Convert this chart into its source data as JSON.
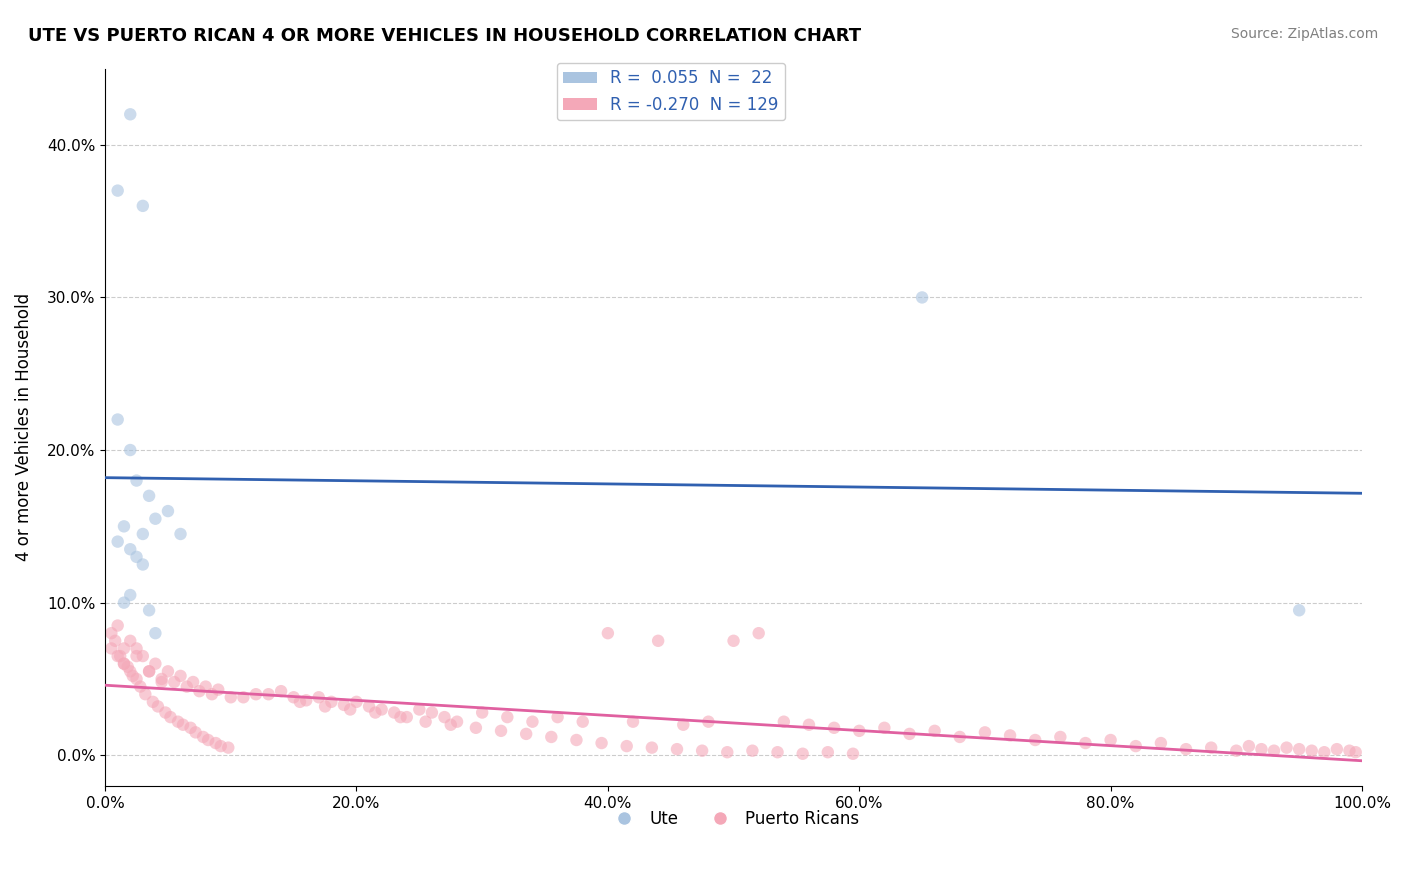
{
  "title": "UTE VS PUERTO RICAN 4 OR MORE VEHICLES IN HOUSEHOLD CORRELATION CHART",
  "source": "Source: ZipAtlas.com",
  "xlabel": "",
  "ylabel": "4 or more Vehicles in Household",
  "xlim": [
    0,
    1.0
  ],
  "ylim": [
    -0.02,
    0.45
  ],
  "xticks": [
    0.0,
    0.2,
    0.4,
    0.6,
    0.8,
    1.0
  ],
  "xticklabels": [
    "0.0%",
    "20.0%",
    "40.0%",
    "60.0%",
    "80.0%",
    "100.0%"
  ],
  "yticks": [
    0.0,
    0.1,
    0.2,
    0.3,
    0.4
  ],
  "yticklabels": [
    "0.0%",
    "10.0%",
    "20.0%",
    "30.0%",
    "40.0%"
  ],
  "blue_R": 0.055,
  "blue_N": 22,
  "pink_R": -0.27,
  "pink_N": 129,
  "blue_color": "#aac4e0",
  "pink_color": "#f4a8b8",
  "blue_line_color": "#3060b0",
  "pink_line_color": "#e060a0",
  "legend_blue_label": "R =  0.055  N =  22",
  "legend_pink_label": "R = -0.270  N = 129",
  "background_color": "#ffffff",
  "grid_color": "#cccccc",
  "ute_x": [
    0.02,
    0.01,
    0.03,
    0.04,
    0.01,
    0.02,
    0.025,
    0.035,
    0.015,
    0.04,
    0.05,
    0.03,
    0.06,
    0.01,
    0.02,
    0.025,
    0.03,
    0.65,
    0.02,
    0.015,
    0.035,
    0.95
  ],
  "ute_y": [
    0.42,
    0.37,
    0.36,
    0.08,
    0.22,
    0.2,
    0.18,
    0.17,
    0.15,
    0.155,
    0.16,
    0.145,
    0.145,
    0.14,
    0.135,
    0.13,
    0.125,
    0.3,
    0.105,
    0.1,
    0.095,
    0.095
  ],
  "pr_x": [
    0.01,
    0.015,
    0.02,
    0.025,
    0.005,
    0.01,
    0.015,
    0.02,
    0.025,
    0.03,
    0.035,
    0.04,
    0.045,
    0.05,
    0.055,
    0.06,
    0.065,
    0.07,
    0.075,
    0.08,
    0.085,
    0.09,
    0.1,
    0.12,
    0.14,
    0.15,
    0.16,
    0.17,
    0.18,
    0.19,
    0.2,
    0.21,
    0.22,
    0.23,
    0.24,
    0.25,
    0.26,
    0.27,
    0.28,
    0.3,
    0.32,
    0.34,
    0.36,
    0.38,
    0.4,
    0.42,
    0.44,
    0.46,
    0.48,
    0.5,
    0.52,
    0.54,
    0.56,
    0.58,
    0.6,
    0.62,
    0.64,
    0.66,
    0.68,
    0.7,
    0.72,
    0.74,
    0.76,
    0.78,
    0.8,
    0.82,
    0.84,
    0.86,
    0.88,
    0.9,
    0.91,
    0.92,
    0.93,
    0.94,
    0.95,
    0.96,
    0.97,
    0.98,
    0.99,
    0.995,
    0.015,
    0.025,
    0.035,
    0.045,
    0.005,
    0.008,
    0.012,
    0.018,
    0.022,
    0.028,
    0.032,
    0.038,
    0.042,
    0.048,
    0.052,
    0.058,
    0.062,
    0.068,
    0.072,
    0.078,
    0.082,
    0.088,
    0.092,
    0.098,
    0.11,
    0.13,
    0.155,
    0.175,
    0.195,
    0.215,
    0.235,
    0.255,
    0.275,
    0.295,
    0.315,
    0.335,
    0.355,
    0.375,
    0.395,
    0.415,
    0.435,
    0.455,
    0.475,
    0.495,
    0.515,
    0.535,
    0.555,
    0.575,
    0.595
  ],
  "pr_y": [
    0.085,
    0.06,
    0.075,
    0.065,
    0.07,
    0.065,
    0.06,
    0.055,
    0.07,
    0.065,
    0.055,
    0.06,
    0.05,
    0.055,
    0.048,
    0.052,
    0.045,
    0.048,
    0.042,
    0.045,
    0.04,
    0.043,
    0.038,
    0.04,
    0.042,
    0.038,
    0.036,
    0.038,
    0.035,
    0.033,
    0.035,
    0.032,
    0.03,
    0.028,
    0.025,
    0.03,
    0.028,
    0.025,
    0.022,
    0.028,
    0.025,
    0.022,
    0.025,
    0.022,
    0.08,
    0.022,
    0.075,
    0.02,
    0.022,
    0.075,
    0.08,
    0.022,
    0.02,
    0.018,
    0.016,
    0.018,
    0.014,
    0.016,
    0.012,
    0.015,
    0.013,
    0.01,
    0.012,
    0.008,
    0.01,
    0.006,
    0.008,
    0.004,
    0.005,
    0.003,
    0.006,
    0.004,
    0.003,
    0.005,
    0.004,
    0.003,
    0.002,
    0.004,
    0.003,
    0.002,
    0.07,
    0.05,
    0.055,
    0.048,
    0.08,
    0.075,
    0.065,
    0.058,
    0.052,
    0.045,
    0.04,
    0.035,
    0.032,
    0.028,
    0.025,
    0.022,
    0.02,
    0.018,
    0.015,
    0.012,
    0.01,
    0.008,
    0.006,
    0.005,
    0.038,
    0.04,
    0.035,
    0.032,
    0.03,
    0.028,
    0.025,
    0.022,
    0.02,
    0.018,
    0.016,
    0.014,
    0.012,
    0.01,
    0.008,
    0.006,
    0.005,
    0.004,
    0.003,
    0.002,
    0.003,
    0.002,
    0.001,
    0.002,
    0.001
  ],
  "marker_size": 80,
  "marker_alpha": 0.6,
  "line_width": 2.0
}
